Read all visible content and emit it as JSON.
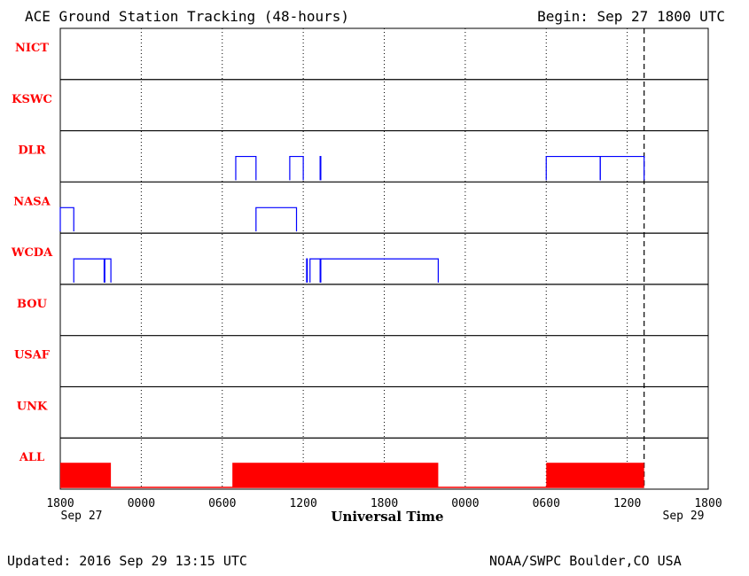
{
  "chart_data": {
    "type": "timeline",
    "title": "ACE Ground Station Tracking (48-hours)",
    "begin": "Begin: Sep 27 1800 UTC",
    "xlabel": "Universal Time",
    "x_range_hours": [
      0,
      48
    ],
    "tick_labels": [
      "1800",
      "0000",
      "0600",
      "1200",
      "1800",
      "0000",
      "0600",
      "1200",
      "1800"
    ],
    "tick_dates": {
      "start": "Sep 27",
      "end": "Sep 29"
    },
    "current_time_hours": 43.25,
    "stations": [
      {
        "name": "NICT",
        "intervals": []
      },
      {
        "name": "KSWC",
        "intervals": []
      },
      {
        "name": "DLR",
        "intervals": [
          [
            13.0,
            14.5
          ],
          [
            17.0,
            18.0
          ],
          [
            19.25,
            19.3
          ],
          [
            36.0,
            40.0
          ],
          [
            40.0,
            43.25
          ]
        ]
      },
      {
        "name": "NASA",
        "intervals": [
          [
            0.0,
            1.0
          ],
          [
            14.5,
            17.5
          ]
        ]
      },
      {
        "name": "WCDA",
        "intervals": [
          [
            1.0,
            3.25
          ],
          [
            3.3,
            3.75
          ],
          [
            18.25,
            18.3
          ],
          [
            18.5,
            19.25
          ],
          [
            19.3,
            28.0
          ]
        ]
      },
      {
        "name": "BOU",
        "intervals": []
      },
      {
        "name": "USAF",
        "intervals": []
      },
      {
        "name": "UNK",
        "intervals": []
      },
      {
        "name": "ALL",
        "intervals": [
          [
            0.0,
            3.75
          ],
          [
            12.75,
            28.0
          ],
          [
            36.0,
            43.25
          ]
        ]
      }
    ],
    "colors": {
      "station_label": "#ff0000",
      "track": "#0000ff",
      "all_fill": "#ff0000",
      "grid": "#000000"
    }
  },
  "footer": {
    "updated": "Updated: 2016 Sep 29 13:15 UTC",
    "credit": "NOAA/SWPC Boulder,CO USA"
  }
}
